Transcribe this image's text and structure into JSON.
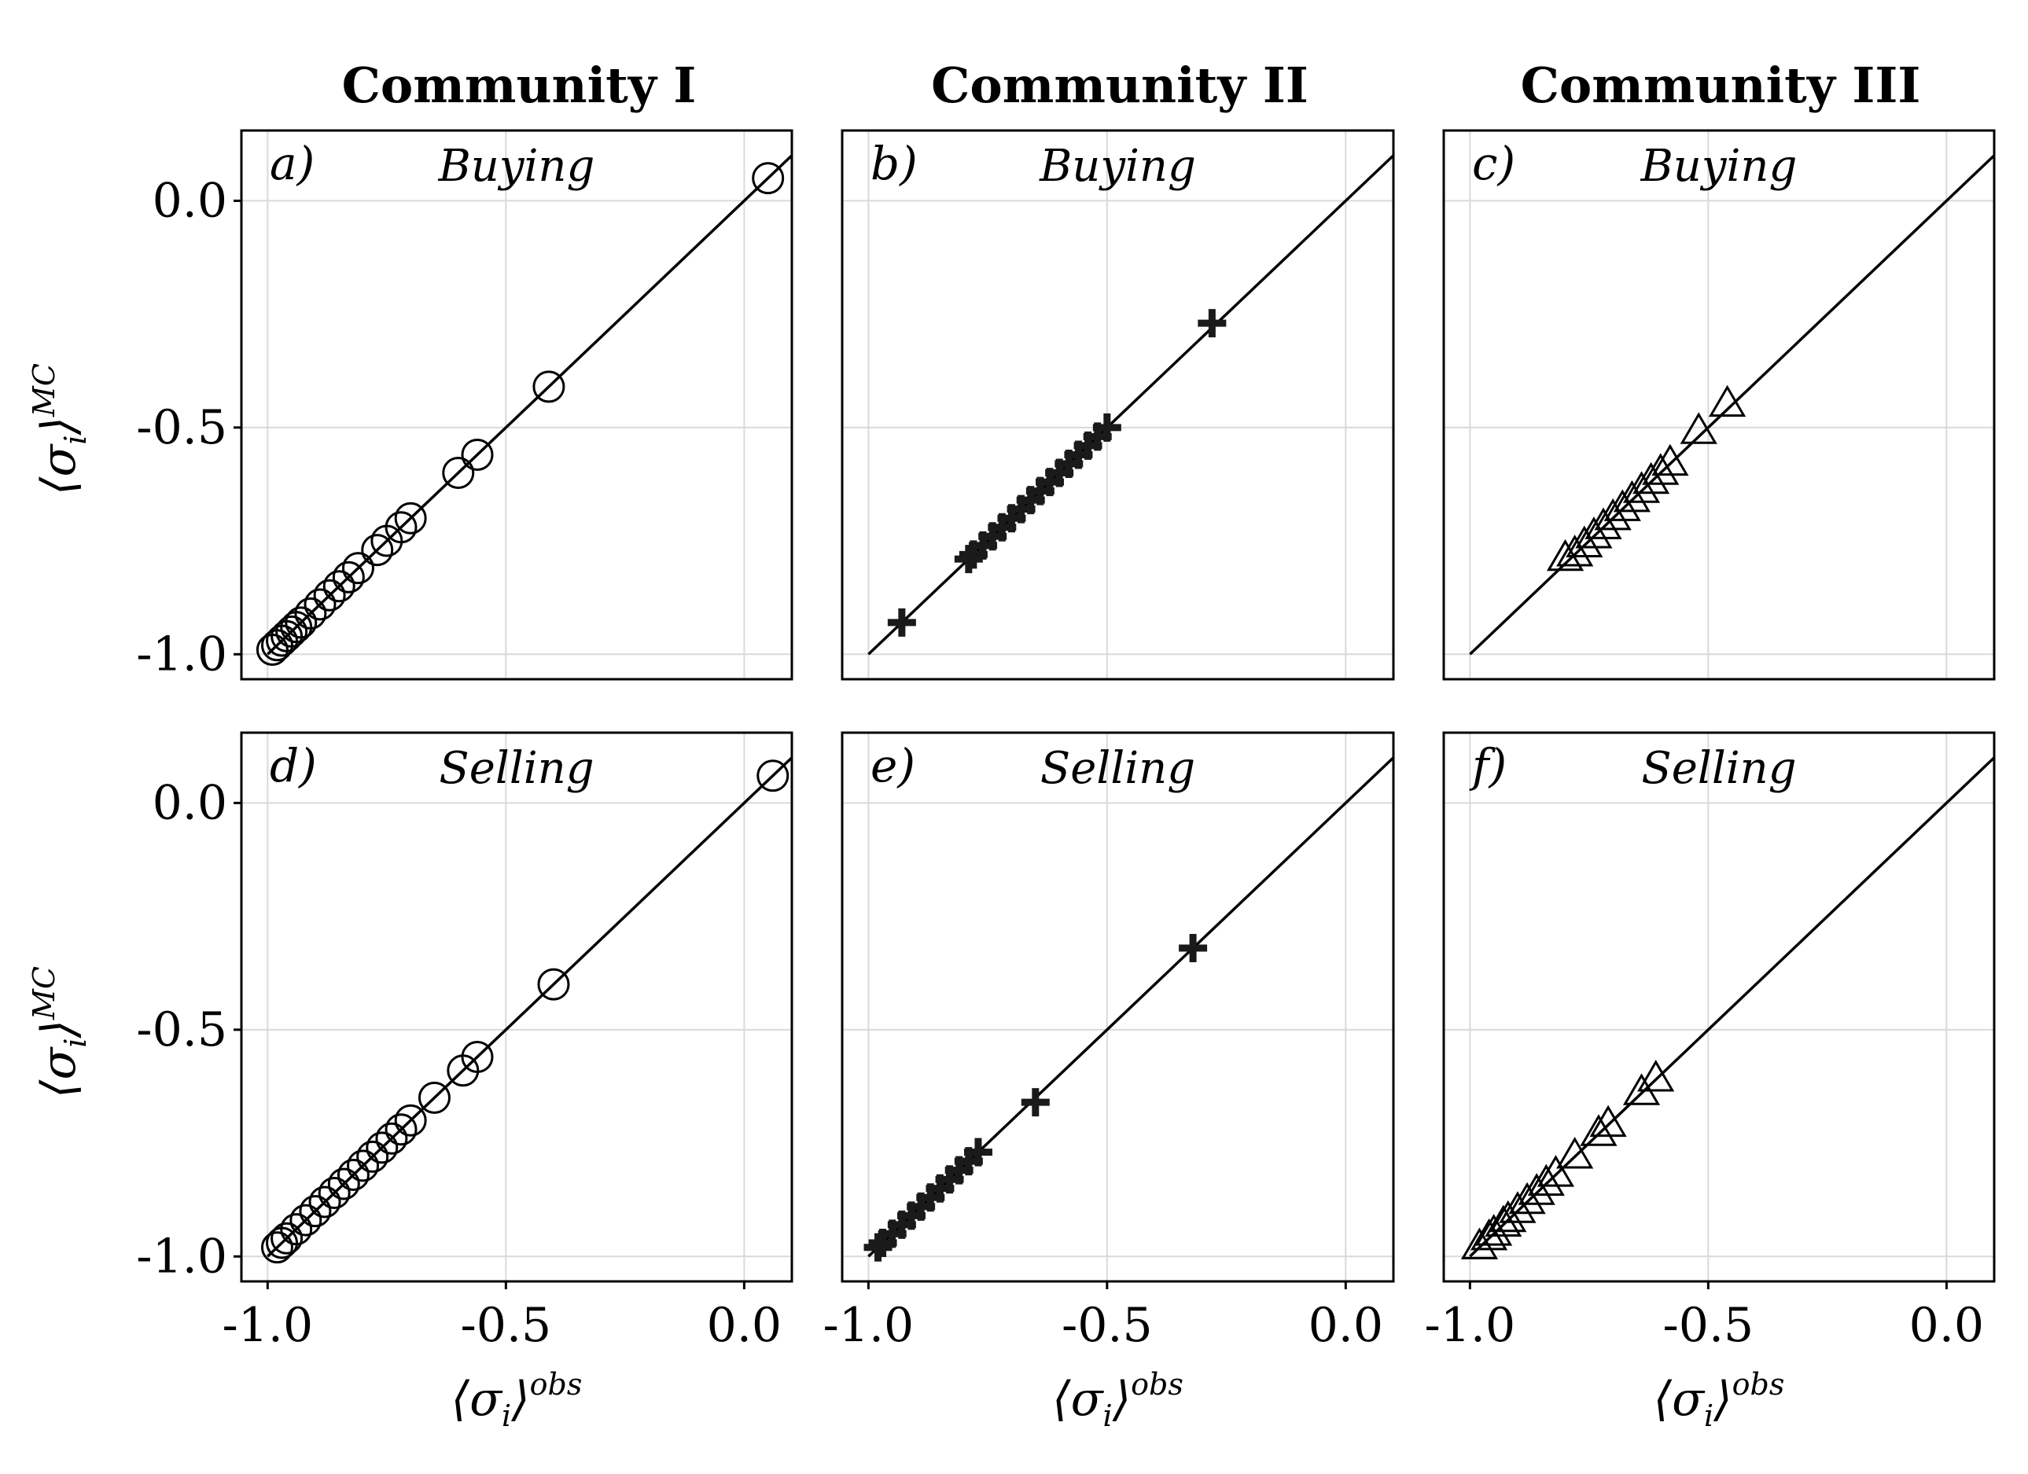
{
  "figure": {
    "column_titles": [
      "Community I",
      "Community II",
      "Community III"
    ],
    "y_axis_label": "⟨σ",
    "y_axis_sub": "i",
    "y_axis_sup": "MC",
    "x_axis_label": "⟨σ",
    "x_axis_sub": "i",
    "x_axis_sup": "obs",
    "tick_labels": [
      "-1.0",
      "-0.5",
      "0.0"
    ]
  },
  "chart_data": [
    {
      "type": "scatter",
      "panel": "a)",
      "subtitle": "Buying",
      "community": "Community I",
      "marker": "circle",
      "xlim": [
        -1.055,
        0.1
      ],
      "ylim": [
        -1.055,
        0.155
      ],
      "diagonal": [
        -1.0,
        0.1
      ],
      "points": [
        [
          0.05,
          0.05
        ],
        [
          -0.41,
          -0.41
        ],
        [
          -0.56,
          -0.56
        ],
        [
          -0.6,
          -0.6
        ],
        [
          -0.7,
          -0.7
        ],
        [
          -0.72,
          -0.72
        ],
        [
          -0.75,
          -0.75
        ],
        [
          -0.77,
          -0.77
        ],
        [
          -0.81,
          -0.81
        ],
        [
          -0.83,
          -0.83
        ],
        [
          -0.85,
          -0.85
        ],
        [
          -0.87,
          -0.87
        ],
        [
          -0.89,
          -0.89
        ],
        [
          -0.91,
          -0.91
        ],
        [
          -0.93,
          -0.93
        ],
        [
          -0.94,
          -0.94
        ],
        [
          -0.95,
          -0.95
        ],
        [
          -0.96,
          -0.96
        ],
        [
          -0.97,
          -0.97
        ],
        [
          -0.98,
          -0.98
        ],
        [
          -0.99,
          -0.99
        ]
      ]
    },
    {
      "type": "scatter",
      "panel": "b)",
      "subtitle": "Buying",
      "community": "Community II",
      "marker": "plus",
      "xlim": [
        -1.055,
        0.1
      ],
      "ylim": [
        -1.055,
        0.155
      ],
      "diagonal": [
        -1.0,
        0.1
      ],
      "points": [
        [
          -0.28,
          -0.27
        ],
        [
          -0.5,
          -0.5
        ],
        [
          -0.52,
          -0.52
        ],
        [
          -0.54,
          -0.54
        ],
        [
          -0.56,
          -0.56
        ],
        [
          -0.58,
          -0.58
        ],
        [
          -0.6,
          -0.6
        ],
        [
          -0.62,
          -0.62
        ],
        [
          -0.64,
          -0.64
        ],
        [
          -0.66,
          -0.66
        ],
        [
          -0.68,
          -0.68
        ],
        [
          -0.7,
          -0.7
        ],
        [
          -0.72,
          -0.72
        ],
        [
          -0.74,
          -0.74
        ],
        [
          -0.76,
          -0.76
        ],
        [
          -0.78,
          -0.78
        ],
        [
          -0.79,
          -0.79
        ],
        [
          -0.93,
          -0.93
        ]
      ]
    },
    {
      "type": "scatter",
      "panel": "c)",
      "subtitle": "Buying",
      "community": "Community III",
      "marker": "triangle",
      "xlim": [
        -1.055,
        0.1
      ],
      "ylim": [
        -1.055,
        0.155
      ],
      "diagonal": [
        -1.0,
        0.1
      ],
      "points": [
        [
          -0.46,
          -0.45
        ],
        [
          -0.52,
          -0.51
        ],
        [
          -0.58,
          -0.58
        ],
        [
          -0.6,
          -0.6
        ],
        [
          -0.62,
          -0.62
        ],
        [
          -0.64,
          -0.64
        ],
        [
          -0.66,
          -0.66
        ],
        [
          -0.68,
          -0.68
        ],
        [
          -0.7,
          -0.7
        ],
        [
          -0.72,
          -0.72
        ],
        [
          -0.74,
          -0.74
        ],
        [
          -0.76,
          -0.76
        ],
        [
          -0.78,
          -0.78
        ],
        [
          -0.8,
          -0.79
        ]
      ]
    },
    {
      "type": "scatter",
      "panel": "d)",
      "subtitle": "Selling",
      "community": "Community I",
      "marker": "circle",
      "xlim": [
        -1.055,
        0.1
      ],
      "ylim": [
        -1.055,
        0.155
      ],
      "diagonal": [
        -1.0,
        0.1
      ],
      "points": [
        [
          0.06,
          0.06
        ],
        [
          -0.4,
          -0.4
        ],
        [
          -0.56,
          -0.56
        ],
        [
          -0.59,
          -0.59
        ],
        [
          -0.65,
          -0.65
        ],
        [
          -0.7,
          -0.7
        ],
        [
          -0.72,
          -0.72
        ],
        [
          -0.74,
          -0.74
        ],
        [
          -0.76,
          -0.76
        ],
        [
          -0.78,
          -0.78
        ],
        [
          -0.8,
          -0.8
        ],
        [
          -0.82,
          -0.82
        ],
        [
          -0.84,
          -0.84
        ],
        [
          -0.86,
          -0.86
        ],
        [
          -0.88,
          -0.88
        ],
        [
          -0.9,
          -0.9
        ],
        [
          -0.92,
          -0.92
        ],
        [
          -0.94,
          -0.94
        ],
        [
          -0.96,
          -0.96
        ],
        [
          -0.97,
          -0.97
        ],
        [
          -0.98,
          -0.98
        ]
      ]
    },
    {
      "type": "scatter",
      "panel": "e)",
      "subtitle": "Selling",
      "community": "Community II",
      "marker": "plus",
      "xlim": [
        -1.055,
        0.1
      ],
      "ylim": [
        -1.055,
        0.155
      ],
      "diagonal": [
        -1.0,
        0.1
      ],
      "points": [
        [
          -0.32,
          -0.32
        ],
        [
          -0.65,
          -0.66
        ],
        [
          -0.77,
          -0.77
        ],
        [
          -0.79,
          -0.79
        ],
        [
          -0.81,
          -0.81
        ],
        [
          -0.83,
          -0.83
        ],
        [
          -0.85,
          -0.85
        ],
        [
          -0.87,
          -0.87
        ],
        [
          -0.89,
          -0.89
        ],
        [
          -0.91,
          -0.91
        ],
        [
          -0.93,
          -0.93
        ],
        [
          -0.95,
          -0.95
        ],
        [
          -0.97,
          -0.97
        ],
        [
          -0.98,
          -0.98
        ]
      ]
    },
    {
      "type": "scatter",
      "panel": "f)",
      "subtitle": "Selling",
      "community": "Community III",
      "marker": "triangle",
      "xlim": [
        -1.055,
        0.1
      ],
      "ylim": [
        -1.055,
        0.155
      ],
      "diagonal": [
        -1.0,
        0.1
      ],
      "points": [
        [
          -0.61,
          -0.61
        ],
        [
          -0.64,
          -0.64
        ],
        [
          -0.71,
          -0.71
        ],
        [
          -0.73,
          -0.73
        ],
        [
          -0.78,
          -0.78
        ],
        [
          -0.82,
          -0.82
        ],
        [
          -0.84,
          -0.84
        ],
        [
          -0.86,
          -0.86
        ],
        [
          -0.88,
          -0.88
        ],
        [
          -0.9,
          -0.9
        ],
        [
          -0.92,
          -0.92
        ],
        [
          -0.93,
          -0.93
        ],
        [
          -0.95,
          -0.95
        ],
        [
          -0.96,
          -0.96
        ],
        [
          -0.98,
          -0.98
        ]
      ]
    }
  ]
}
